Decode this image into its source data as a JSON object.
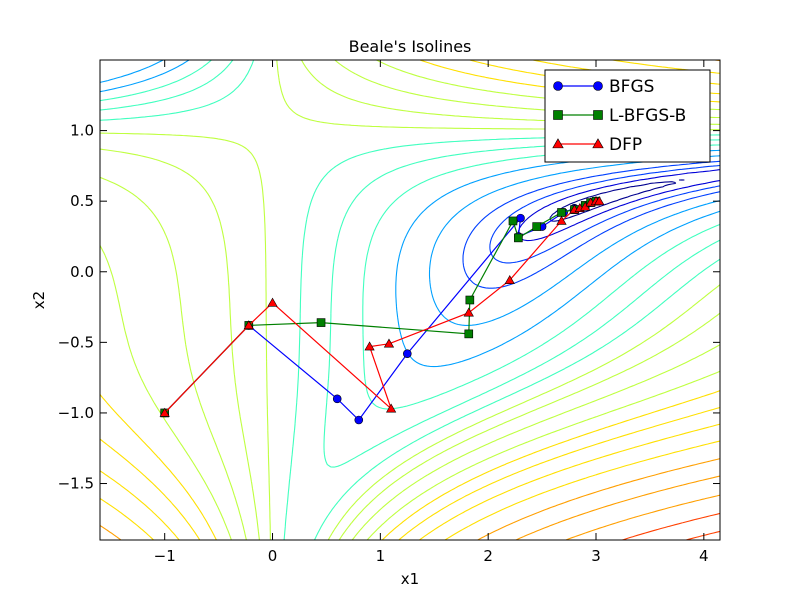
{
  "chart_data": {
    "type": "line",
    "title": "Beale's Isolines",
    "xlabel": "x1",
    "ylabel": "x2",
    "xlim": [
      -1.6,
      4.15
    ],
    "ylim": [
      -1.9,
      1.5
    ],
    "x_ticks": [
      {
        "value": -1,
        "label": "−1"
      },
      {
        "value": 0,
        "label": "0"
      },
      {
        "value": 1,
        "label": "1"
      },
      {
        "value": 2,
        "label": "2"
      },
      {
        "value": 3,
        "label": "3"
      },
      {
        "value": 4,
        "label": "4"
      }
    ],
    "y_ticks": [
      {
        "value": 1.0,
        "label": "1.0"
      },
      {
        "value": 0.5,
        "label": "0.5"
      },
      {
        "value": 0.0,
        "label": "0.0"
      },
      {
        "value": -0.5,
        "label": "−0.5"
      },
      {
        "value": -1.0,
        "label": "−1.0"
      },
      {
        "value": -1.5,
        "label": "−1.5"
      }
    ],
    "grid": false,
    "legend_position": "top-right",
    "contour_colors": [
      "#00008f",
      "#0000d8",
      "#0040ff",
      "#00a0ff",
      "#40ffbf",
      "#bfff40",
      "#ffe000",
      "#ff9f00",
      "#ff4000",
      "#8f0000"
    ],
    "contour_levels": [
      0.05,
      0.2,
      0.5,
      1,
      2,
      3.5,
      5.5,
      8,
      11,
      15,
      20,
      28,
      40,
      55,
      75,
      105,
      150,
      220,
      320,
      480,
      700,
      1000,
      1450,
      2100,
      3100,
      4500
    ],
    "series": [
      {
        "name": "BFGS",
        "color": "#0000ff",
        "marker": "circle",
        "x": [
          -1.0,
          -0.22,
          0.6,
          0.8,
          1.25,
          2.3,
          2.28,
          2.5,
          2.7,
          2.8,
          2.9,
          2.95,
          3.0
        ],
        "y": [
          -1.0,
          -0.38,
          -0.9,
          -1.05,
          -0.58,
          0.38,
          0.25,
          0.32,
          0.42,
          0.45,
          0.47,
          0.49,
          0.5
        ]
      },
      {
        "name": "L-BFGS-B",
        "color": "#008000",
        "marker": "square",
        "x": [
          -1.0,
          -0.22,
          0.45,
          1.82,
          1.83,
          2.23,
          2.28,
          2.45,
          2.68,
          2.8,
          2.9,
          2.95,
          3.0
        ],
        "y": [
          -1.0,
          -0.38,
          -0.36,
          -0.44,
          -0.2,
          0.36,
          0.24,
          0.32,
          0.42,
          0.44,
          0.47,
          0.49,
          0.5
        ]
      },
      {
        "name": "DFP",
        "color": "#ff0000",
        "marker": "triangle",
        "x": [
          -1.0,
          -0.22,
          0.0,
          1.1,
          0.9,
          1.08,
          1.82,
          2.2,
          2.68,
          2.8,
          2.85,
          2.9,
          2.95,
          3.0,
          3.03
        ],
        "y": [
          -1.0,
          -0.38,
          -0.22,
          -0.97,
          -0.53,
          -0.51,
          -0.29,
          -0.06,
          0.36,
          0.44,
          0.45,
          0.46,
          0.49,
          0.5,
          0.5
        ]
      }
    ]
  }
}
